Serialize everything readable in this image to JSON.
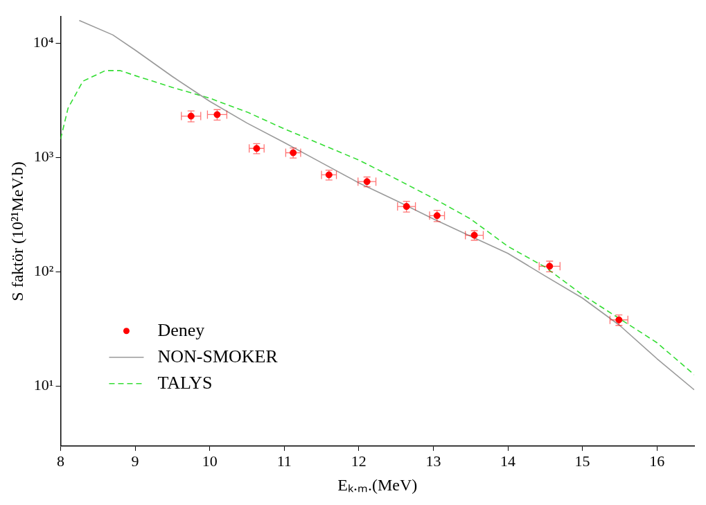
{
  "chart_data": {
    "type": "scatter",
    "xlabel": "Eₖ.ₘ.(MeV)",
    "ylabel": "S faktör (10²¹MeV.b)",
    "log": "y",
    "grid": false,
    "legend": "bottom left",
    "xlim": [
      8,
      16.5
    ],
    "xticks": [
      8,
      9,
      10,
      11,
      12,
      13,
      14,
      15,
      16
    ],
    "ylim": [
      3,
      17000
    ],
    "yticks": [
      {
        "value": 10,
        "label": "10¹"
      },
      {
        "value": 100,
        "label": "10²"
      },
      {
        "value": 1000,
        "label": "10³"
      },
      {
        "value": 10000,
        "label": "10⁴"
      }
    ],
    "series": [
      {
        "name": "Deney",
        "type": "scatter",
        "marker": "circle",
        "color": "#ff0000",
        "x": [
          9.75,
          10.1,
          10.63,
          11.12,
          11.6,
          12.11,
          12.64,
          13.05,
          13.55,
          14.56,
          15.49
        ],
        "values": [
          2300,
          2370,
          1200,
          1100,
          705,
          615,
          373,
          310,
          209,
          112,
          38
        ],
        "errors": [
          250,
          250,
          120,
          110,
          70,
          60,
          40,
          35,
          20,
          12,
          4
        ],
        "xerrors": [
          0.13,
          0.13,
          0.1,
          0.1,
          0.1,
          0.12,
          0.12,
          0.1,
          0.12,
          0.14,
          0.12
        ]
      },
      {
        "name": "NON-SMOKER",
        "type": "line",
        "marker": "none",
        "line_style": "solid",
        "color": "#9a9a9a",
        "x": [
          8.25,
          8.7,
          9,
          9.5,
          10,
          10.5,
          11,
          11.5,
          12,
          12.5,
          13,
          13.5,
          14,
          14.5,
          15,
          15.5,
          16,
          16.5
        ],
        "values": [
          15800,
          11800,
          8700,
          5100,
          3100,
          2000,
          1350,
          900,
          600,
          420,
          290,
          205,
          145,
          92,
          59,
          34,
          17.4,
          9.3
        ]
      },
      {
        "name": "TALYS",
        "type": "line",
        "marker": "none",
        "line_style": "dashed",
        "color": "#33dd33",
        "x": [
          8,
          8.1,
          8.3,
          8.6,
          8.8,
          9,
          9.5,
          10,
          10.5,
          11,
          11.5,
          12,
          12.5,
          13,
          13.5,
          14,
          14.5,
          15,
          16,
          16.5
        ],
        "values": [
          1450,
          2700,
          4650,
          5750,
          5750,
          5200,
          4100,
          3300,
          2500,
          1780,
          1300,
          950,
          650,
          440,
          290,
          167,
          110,
          63,
          24,
          12.6
        ]
      }
    ]
  }
}
